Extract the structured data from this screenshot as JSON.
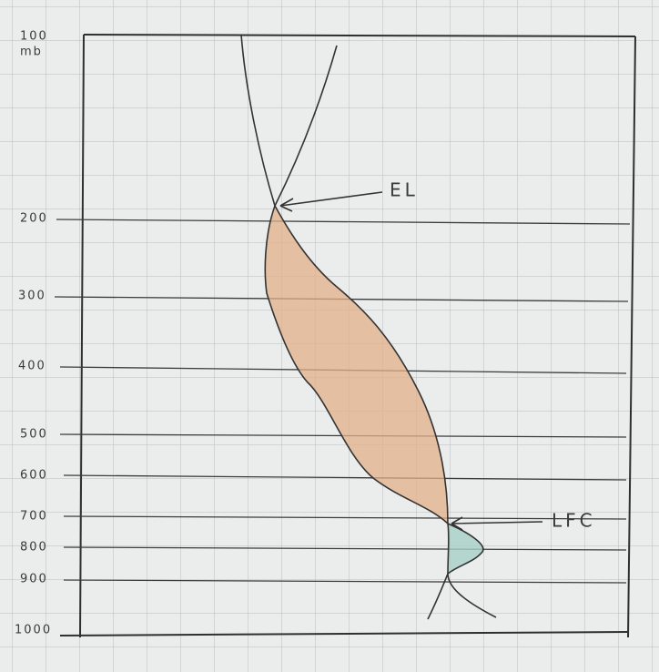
{
  "axis": {
    "top_label": "100",
    "unit": "mb",
    "levels": [
      "200",
      "300",
      "400",
      "500",
      "600",
      "700",
      "800",
      "900",
      "1000"
    ]
  },
  "annotations": {
    "equilibrium_level": "EL",
    "level_of_free_convection": "LFC"
  }
}
